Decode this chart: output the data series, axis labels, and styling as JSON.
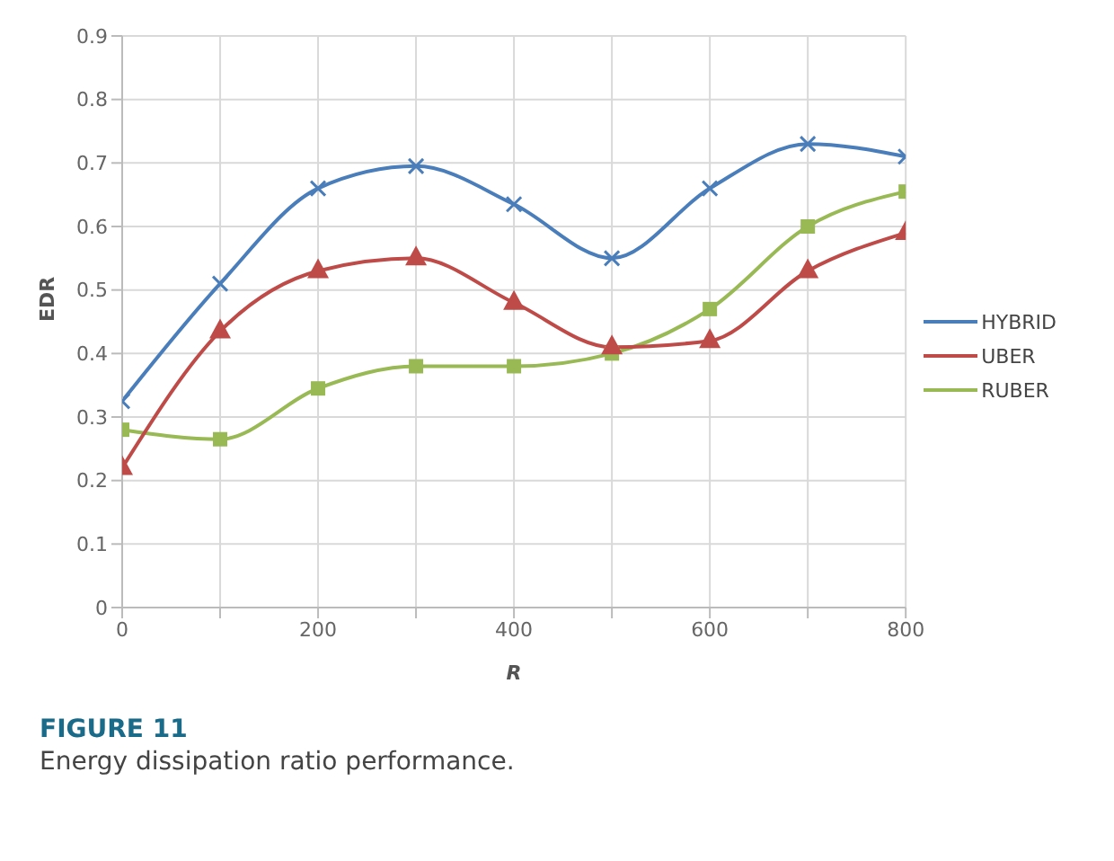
{
  "chart_data": {
    "type": "line",
    "xlabel": "R",
    "ylabel": "EDR",
    "x": [
      0,
      100,
      200,
      300,
      400,
      500,
      600,
      700,
      800
    ],
    "series": [
      {
        "name": "HYBRID",
        "color": "#4a7ebb",
        "marker": "cross",
        "values": [
          0.325,
          0.51,
          0.66,
          0.695,
          0.635,
          0.55,
          0.66,
          0.73,
          0.71
        ]
      },
      {
        "name": "UBER",
        "color": "#be4b48",
        "marker": "triangle",
        "values": [
          0.22,
          0.435,
          0.53,
          0.55,
          0.48,
          0.41,
          0.42,
          0.53,
          0.59
        ]
      },
      {
        "name": "RUBER",
        "color": "#98b954",
        "marker": "square",
        "values": [
          0.28,
          0.265,
          0.345,
          0.38,
          0.38,
          0.4,
          0.47,
          0.6,
          0.655
        ]
      }
    ],
    "xlim": [
      0,
      800
    ],
    "xticks": [
      0,
      {
        "value": 100,
        "label": null
      },
      200,
      {
        "value": 300,
        "label": null
      },
      400,
      {
        "value": 500,
        "label": null
      },
      600,
      {
        "value": 700,
        "label": null
      },
      800
    ],
    "ylim": [
      0,
      0.9
    ],
    "yticks": [
      0,
      0.1,
      0.2,
      0.3,
      0.4,
      0.5,
      0.6,
      0.7,
      0.8,
      0.9
    ],
    "grid": true,
    "legend": "right",
    "annotations": [
      "FIGURE 11",
      "Energy dissipation ratio performance."
    ]
  }
}
